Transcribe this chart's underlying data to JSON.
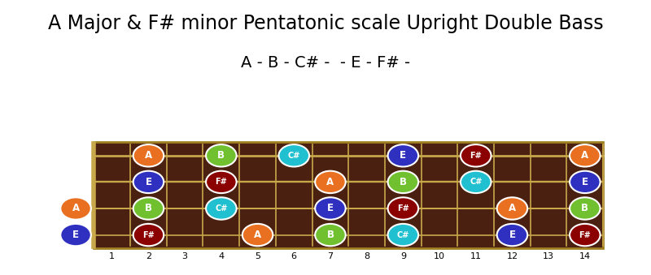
{
  "title": "A Major & F# minor Pentatonic scale Upright Double Bass",
  "subtitle": "A - B - C# -  - E - F# -",
  "fret_min": 0,
  "fret_max": 14,
  "num_strings": 4,
  "fretboard_color": "#4a2010",
  "nut_color": "#c8a84b",
  "background_color": "#ffffff",
  "note_color_map": {
    "A": "#e87020",
    "B": "#70c030",
    "C#": "#20c0d0",
    "E": "#3030c0",
    "F#": "#8b0000"
  },
  "notes": [
    {
      "string": 0,
      "fret": 2,
      "note": "A",
      "color": "#e87020"
    },
    {
      "string": 0,
      "fret": 4,
      "note": "B",
      "color": "#70c030"
    },
    {
      "string": 0,
      "fret": 6,
      "note": "C#",
      "color": "#20c0d0"
    },
    {
      "string": 0,
      "fret": 9,
      "note": "E",
      "color": "#3030c0"
    },
    {
      "string": 0,
      "fret": 11,
      "note": "F#",
      "color": "#8b0000"
    },
    {
      "string": 0,
      "fret": 14,
      "note": "A",
      "color": "#e87020"
    },
    {
      "string": 1,
      "fret": 2,
      "note": "E",
      "color": "#3030c0"
    },
    {
      "string": 1,
      "fret": 4,
      "note": "F#",
      "color": "#8b0000"
    },
    {
      "string": 1,
      "fret": 7,
      "note": "A",
      "color": "#e87020"
    },
    {
      "string": 1,
      "fret": 9,
      "note": "B",
      "color": "#70c030"
    },
    {
      "string": 1,
      "fret": 11,
      "note": "C#",
      "color": "#20c0d0"
    },
    {
      "string": 1,
      "fret": 14,
      "note": "E",
      "color": "#3030c0"
    },
    {
      "string": 2,
      "fret": 0,
      "note": "A",
      "color": "#e87020"
    },
    {
      "string": 2,
      "fret": 2,
      "note": "B",
      "color": "#70c030"
    },
    {
      "string": 2,
      "fret": 4,
      "note": "C#",
      "color": "#20c0d0"
    },
    {
      "string": 2,
      "fret": 7,
      "note": "E",
      "color": "#3030c0"
    },
    {
      "string": 2,
      "fret": 9,
      "note": "F#",
      "color": "#8b0000"
    },
    {
      "string": 2,
      "fret": 12,
      "note": "A",
      "color": "#e87020"
    },
    {
      "string": 2,
      "fret": 14,
      "note": "B",
      "color": "#70c030"
    },
    {
      "string": 3,
      "fret": 0,
      "note": "E",
      "color": "#3030c0"
    },
    {
      "string": 3,
      "fret": 2,
      "note": "F#",
      "color": "#8b0000"
    },
    {
      "string": 3,
      "fret": 5,
      "note": "A",
      "color": "#e87020"
    },
    {
      "string": 3,
      "fret": 7,
      "note": "B",
      "color": "#70c030"
    },
    {
      "string": 3,
      "fret": 9,
      "note": "C#",
      "color": "#20c0d0"
    },
    {
      "string": 3,
      "fret": 12,
      "note": "E",
      "color": "#3030c0"
    },
    {
      "string": 3,
      "fret": 14,
      "note": "F#",
      "color": "#8b0000"
    }
  ],
  "fret_tick_positions": [
    1,
    2,
    3,
    4,
    5,
    6,
    7,
    8,
    9,
    10,
    11,
    12,
    13,
    14
  ],
  "note_text_color": "#ffffff",
  "title_fontsize": 17,
  "subtitle_fontsize": 14
}
